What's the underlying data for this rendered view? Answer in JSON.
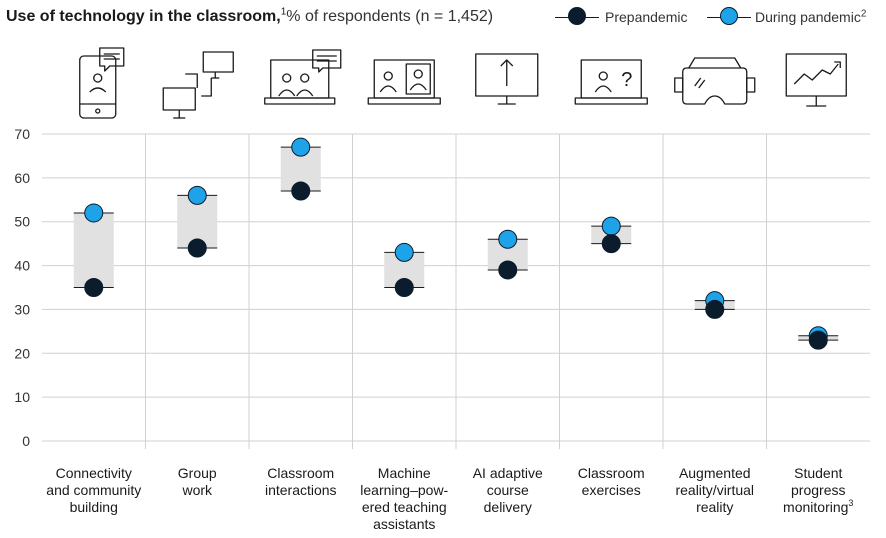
{
  "header": {
    "title": "Use of technology in the classroom,",
    "title_sup": "1",
    "subtitle": "% of respondents (n = 1,452)"
  },
  "legend": {
    "prepandemic": {
      "label": "Prepandemic",
      "color": "#0b1c2c"
    },
    "during": {
      "label": "During pandemic",
      "sup": "2",
      "color": "#1fa3e8"
    }
  },
  "icons": [
    "phone-chat-icon",
    "group-network-icon",
    "classroom-screen-icon",
    "video-call-laptop-icon",
    "monitor-upload-icon",
    "laptop-question-icon",
    "vr-headset-icon",
    "monitor-trend-icon"
  ],
  "chart_data": {
    "type": "scatter",
    "title": "Use of technology in the classroom",
    "ylabel": "% of respondents",
    "ylim": [
      0,
      70
    ],
    "yticks": [
      0,
      10,
      20,
      30,
      40,
      50,
      60,
      70
    ],
    "grid": true,
    "categories": [
      [
        "Connectivity",
        "and community",
        "building"
      ],
      [
        "Group",
        "work"
      ],
      [
        "Classroom",
        "interactions"
      ],
      [
        "Machine",
        "learning–pow-",
        "ered teaching",
        "assistants"
      ],
      [
        "AI adaptive",
        "course",
        "delivery"
      ],
      [
        "Classroom",
        "exercises"
      ],
      [
        "Augmented",
        "reality/virtual",
        "reality"
      ],
      [
        "Student",
        "progress",
        "monitoring"
      ]
    ],
    "category_sups": [
      "",
      "",
      "",
      "",
      "",
      "",
      "",
      "3"
    ],
    "series": [
      {
        "name": "Prepandemic",
        "values": [
          35,
          44,
          57,
          35,
          39,
          45,
          30,
          23
        ]
      },
      {
        "name": "During pandemic",
        "values": [
          52,
          56,
          67,
          43,
          46,
          49,
          32,
          24
        ]
      }
    ]
  }
}
